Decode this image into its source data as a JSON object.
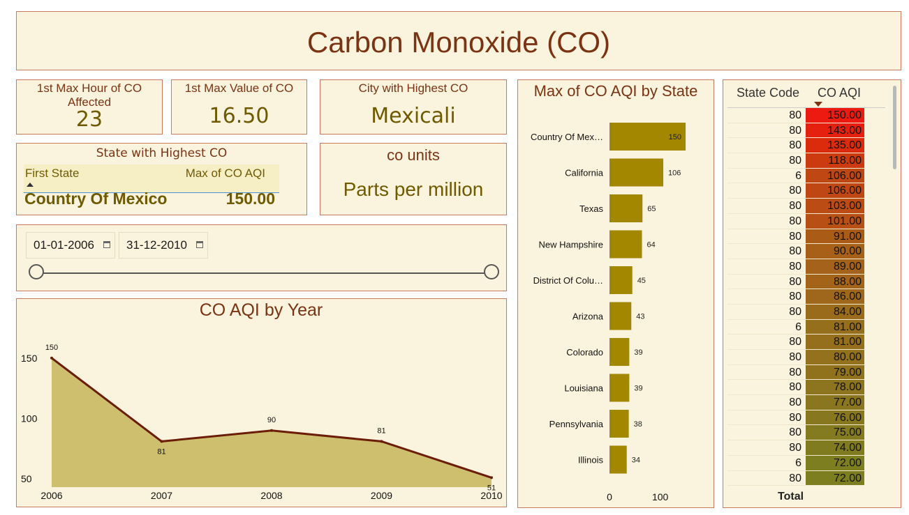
{
  "header": {
    "title": "Carbon Monoxide (CO)"
  },
  "kpis": {
    "max_hour": {
      "label": "1st Max Hour of CO Affected",
      "value": "23"
    },
    "max_value": {
      "label": "1st Max Value of CO",
      "value": "16.50"
    },
    "city": {
      "label": "City with Highest CO",
      "value": "Mexicali"
    },
    "units": {
      "label": "co units",
      "value": "Parts per million"
    }
  },
  "state_card": {
    "title": "State with Highest CO",
    "col1": "First State",
    "col2": "Max of CO AQI",
    "state": "Country Of Mexico",
    "value": "150.00"
  },
  "date_filter": {
    "start": "01-01-2006",
    "end": "31-12-2010"
  },
  "line_chart": {
    "title": "CO AQI by Year",
    "y_ticks": [
      "150",
      "100",
      "50"
    ],
    "x_labels": [
      "2006",
      "2007",
      "2008",
      "2009",
      "2010"
    ],
    "data_labels": [
      "150",
      "81",
      "90",
      "81",
      "51"
    ]
  },
  "bar_chart": {
    "title": "Max of CO AQI by State",
    "labels": [
      "Country Of Mex…",
      "California",
      "Texas",
      "New Hampshire",
      "District Of Colu…",
      "Arizona",
      "Colorado",
      "Louisiana",
      "Pennsylvania",
      "Illinois"
    ],
    "value_labels": [
      "150",
      "106",
      "65",
      "64",
      "45",
      "43",
      "39",
      "39",
      "38",
      "34"
    ],
    "x_ticks": [
      "0",
      "100"
    ]
  },
  "table": {
    "col_state": "State Code",
    "col_aqi": "CO AQI",
    "total_label": "Total",
    "rows": [
      {
        "code": "80",
        "aqi": "150.00",
        "color": "#ec1a10"
      },
      {
        "code": "80",
        "aqi": "143.00",
        "color": "#e5200e"
      },
      {
        "code": "80",
        "aqi": "135.00",
        "color": "#dc2a0d"
      },
      {
        "code": "80",
        "aqi": "118.00",
        "color": "#cc3a10"
      },
      {
        "code": "6",
        "aqi": "106.00",
        "color": "#bf4713"
      },
      {
        "code": "80",
        "aqi": "106.00",
        "color": "#bf4713"
      },
      {
        "code": "80",
        "aqi": "103.00",
        "color": "#bb4c14"
      },
      {
        "code": "80",
        "aqi": "101.00",
        "color": "#b85015"
      },
      {
        "code": "80",
        "aqi": "91.00",
        "color": "#aa5c16"
      },
      {
        "code": "80",
        "aqi": "90.00",
        "color": "#a86018"
      },
      {
        "code": "80",
        "aqi": "89.00",
        "color": "#a5621a"
      },
      {
        "code": "80",
        "aqi": "88.00",
        "color": "#a3641a"
      },
      {
        "code": "80",
        "aqi": "86.00",
        "color": "#9f671b"
      },
      {
        "code": "80",
        "aqi": "84.00",
        "color": "#9b6b1c"
      },
      {
        "code": "6",
        "aqi": "81.00",
        "color": "#956f1c"
      },
      {
        "code": "80",
        "aqi": "81.00",
        "color": "#956f1c"
      },
      {
        "code": "80",
        "aqi": "80.00",
        "color": "#93711d"
      },
      {
        "code": "80",
        "aqi": "79.00",
        "color": "#90721d"
      },
      {
        "code": "80",
        "aqi": "78.00",
        "color": "#8d741e"
      },
      {
        "code": "80",
        "aqi": "77.00",
        "color": "#8a761e"
      },
      {
        "code": "80",
        "aqi": "76.00",
        "color": "#87781f"
      },
      {
        "code": "80",
        "aqi": "75.00",
        "color": "#847a1f"
      },
      {
        "code": "80",
        "aqi": "74.00",
        "color": "#817b20"
      },
      {
        "code": "6",
        "aqi": "72.00",
        "color": "#7d7e20"
      },
      {
        "code": "80",
        "aqi": "72.00",
        "color": "#7d7e20"
      }
    ]
  },
  "chart_data": [
    {
      "type": "area",
      "title": "CO AQI by Year",
      "x": [
        2006,
        2007,
        2008,
        2009,
        2010
      ],
      "values": [
        150,
        81,
        90,
        81,
        51
      ],
      "ylim": [
        42,
        162
      ]
    },
    {
      "type": "bar",
      "title": "Max of CO AQI by State",
      "categories": [
        "Country Of Mex…",
        "California",
        "Texas",
        "New Hampshire",
        "District Of Colu…",
        "Arizona",
        "Colorado",
        "Louisiana",
        "Pennsylvania",
        "Illinois"
      ],
      "values": [
        150,
        106,
        65,
        64,
        45,
        43,
        39,
        39,
        38,
        34
      ],
      "xlim": [
        0,
        180
      ]
    }
  ]
}
